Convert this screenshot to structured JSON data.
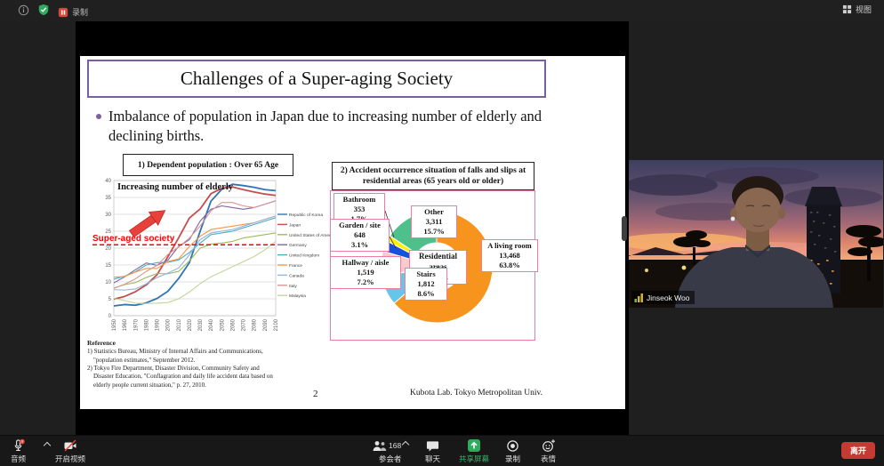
{
  "topbar": {
    "record_label": "录制",
    "view_label": "视图"
  },
  "toolbar": {
    "audio_label": "音频",
    "video_label": "开启视频",
    "participants_label": "参会者",
    "participants_count": "168",
    "chat_label": "聊天",
    "share_label": "共享屏幕",
    "record_label": "录制",
    "reactions_label": "表情",
    "leave_label": "离开"
  },
  "webcam": {
    "participant_name": "Jinseok Woo"
  },
  "colors": {
    "slide_accent_purple": "#7B5FA5",
    "alert_red": "#FF0000",
    "panel_pink": "#F07CA0",
    "share_green": "#2EAB5C",
    "leave_red": "#C43B33"
  },
  "slide": {
    "title": "Challenges of a Super-aging Society",
    "bullet_text": "Imbalance of population in Japan due to increasing number of elderly and declining births.",
    "left_header": "1) Dependent population : Over 65 Age",
    "right_header": "2) Accident occurrence situation of falls and slips at residential areas (65 years old or older)",
    "reference_heading": "Reference",
    "reference_lines": [
      "1) Statistics Bureau, Ministry of Internal Affairs and Communications,",
      "    \"population estimates,\" September 2012.",
      "2) Tokyo Fire Department, Disaster Division, Community Safety and",
      "    Disaster Education, \"Conflagration and daily life accident data based on",
      "    elderly people current situation,\" p. 27, 2010."
    ],
    "page_number": "2",
    "credit": "Kubota Lab. Tokyo Metropolitan Univ."
  },
  "chart_data": [
    {
      "type": "line",
      "title": "Increasing number of elderly",
      "xlabel": "",
      "ylabel": "",
      "x": [
        1950,
        1960,
        1970,
        1980,
        1990,
        2000,
        2010,
        2020,
        2030,
        2040,
        2050,
        2060,
        2070,
        2080,
        2090,
        2100
      ],
      "ylim": [
        0,
        40
      ],
      "ytick_step": 5,
      "grid": true,
      "legend_position": "right",
      "threshold": {
        "value": 21,
        "label": "Super-aged society",
        "color": "#FF0000"
      },
      "series": [
        {
          "name": "Republic of Korea",
          "color": "#2E75B6",
          "values": [
            2.9,
            3.3,
            3.1,
            3.8,
            5.1,
            7.2,
            11.0,
            15.7,
            25.0,
            33.9,
            37.4,
            38.9,
            38.5,
            38.0,
            37.3,
            37.0
          ]
        },
        {
          "name": "Japan",
          "color": "#C0504D",
          "values": [
            4.9,
            5.7,
            7.1,
            9.1,
            12.1,
            17.4,
            23.0,
            28.9,
            31.6,
            36.1,
            37.7,
            38.1,
            37.3,
            36.6,
            36.0,
            35.6
          ]
        },
        {
          "name": "United States of America",
          "color": "#9BBB59",
          "values": [
            8.2,
            9.2,
            9.8,
            11.3,
            12.5,
            12.4,
            13.1,
            16.2,
            20.0,
            21.2,
            21.5,
            22.0,
            23.0,
            23.5,
            24.0,
            24.5
          ]
        },
        {
          "name": "Germany",
          "color": "#8064A2",
          "values": [
            9.7,
            11.5,
            13.6,
            15.6,
            14.9,
            16.4,
            20.5,
            22.5,
            28.0,
            31.5,
            32.5,
            32.0,
            31.5,
            32.0,
            33.0,
            34.0
          ]
        },
        {
          "name": "United Kingdom",
          "color": "#4BACC6",
          "values": [
            10.8,
            11.7,
            13.0,
            15.0,
            15.7,
            15.8,
            16.5,
            18.7,
            21.5,
            24.0,
            24.5,
            25.0,
            26.0,
            27.0,
            28.0,
            29.0
          ]
        },
        {
          "name": "France",
          "color": "#F79646",
          "values": [
            11.4,
            11.6,
            12.9,
            14.0,
            14.0,
            16.0,
            16.8,
            20.5,
            23.5,
            25.5,
            26.0,
            26.5,
            27.0,
            27.5,
            28.5,
            29.5
          ]
        },
        {
          "name": "Canada",
          "color": "#95B3D7",
          "values": [
            7.7,
            7.6,
            7.9,
            9.4,
            11.3,
            12.6,
            14.1,
            18.0,
            22.5,
            24.5,
            25.0,
            25.5,
            26.5,
            27.5,
            28.5,
            29.5
          ]
        },
        {
          "name": "Italy",
          "color": "#D99694",
          "values": [
            8.1,
            9.3,
            10.9,
            13.1,
            14.9,
            18.1,
            20.3,
            23.0,
            26.5,
            31.0,
            33.5,
            33.5,
            32.5,
            32.0,
            33.0,
            34.0
          ]
        },
        {
          "name": "Malaysia",
          "color": "#C2D69B",
          "values": [
            5.1,
            4.5,
            3.7,
            3.6,
            3.7,
            3.9,
            5.0,
            7.0,
            9.5,
            11.5,
            13.0,
            14.5,
            16.0,
            17.5,
            19.5,
            22.0
          ]
        }
      ]
    },
    {
      "type": "pie",
      "donut": true,
      "title": "Accident occurrence situation of falls and slips at residential areas (65 years old or older)",
      "slices": [
        {
          "name": "A living room",
          "value": "13,468",
          "pct": "63.8%",
          "color": "#F7941E"
        },
        {
          "name": "Stairs",
          "value": "1,812",
          "pct": "8.6%",
          "color": "#66C6EA"
        },
        {
          "name": "Hallway / aisle",
          "value": "1,519",
          "pct": "7.2%",
          "color": "#F8C9CD"
        },
        {
          "name": "Garden / site",
          "value": "648",
          "pct": "3.1%",
          "color": "#1551DB"
        },
        {
          "name": "Bathroom",
          "value": "353",
          "pct": "1.7%",
          "color": "#FFF200"
        },
        {
          "name": "Other",
          "value": "3,311",
          "pct": "15.7%",
          "color": "#4FC08C"
        }
      ],
      "center_label": {
        "name": "Residential areas",
        "value": "21,111"
      }
    }
  ]
}
